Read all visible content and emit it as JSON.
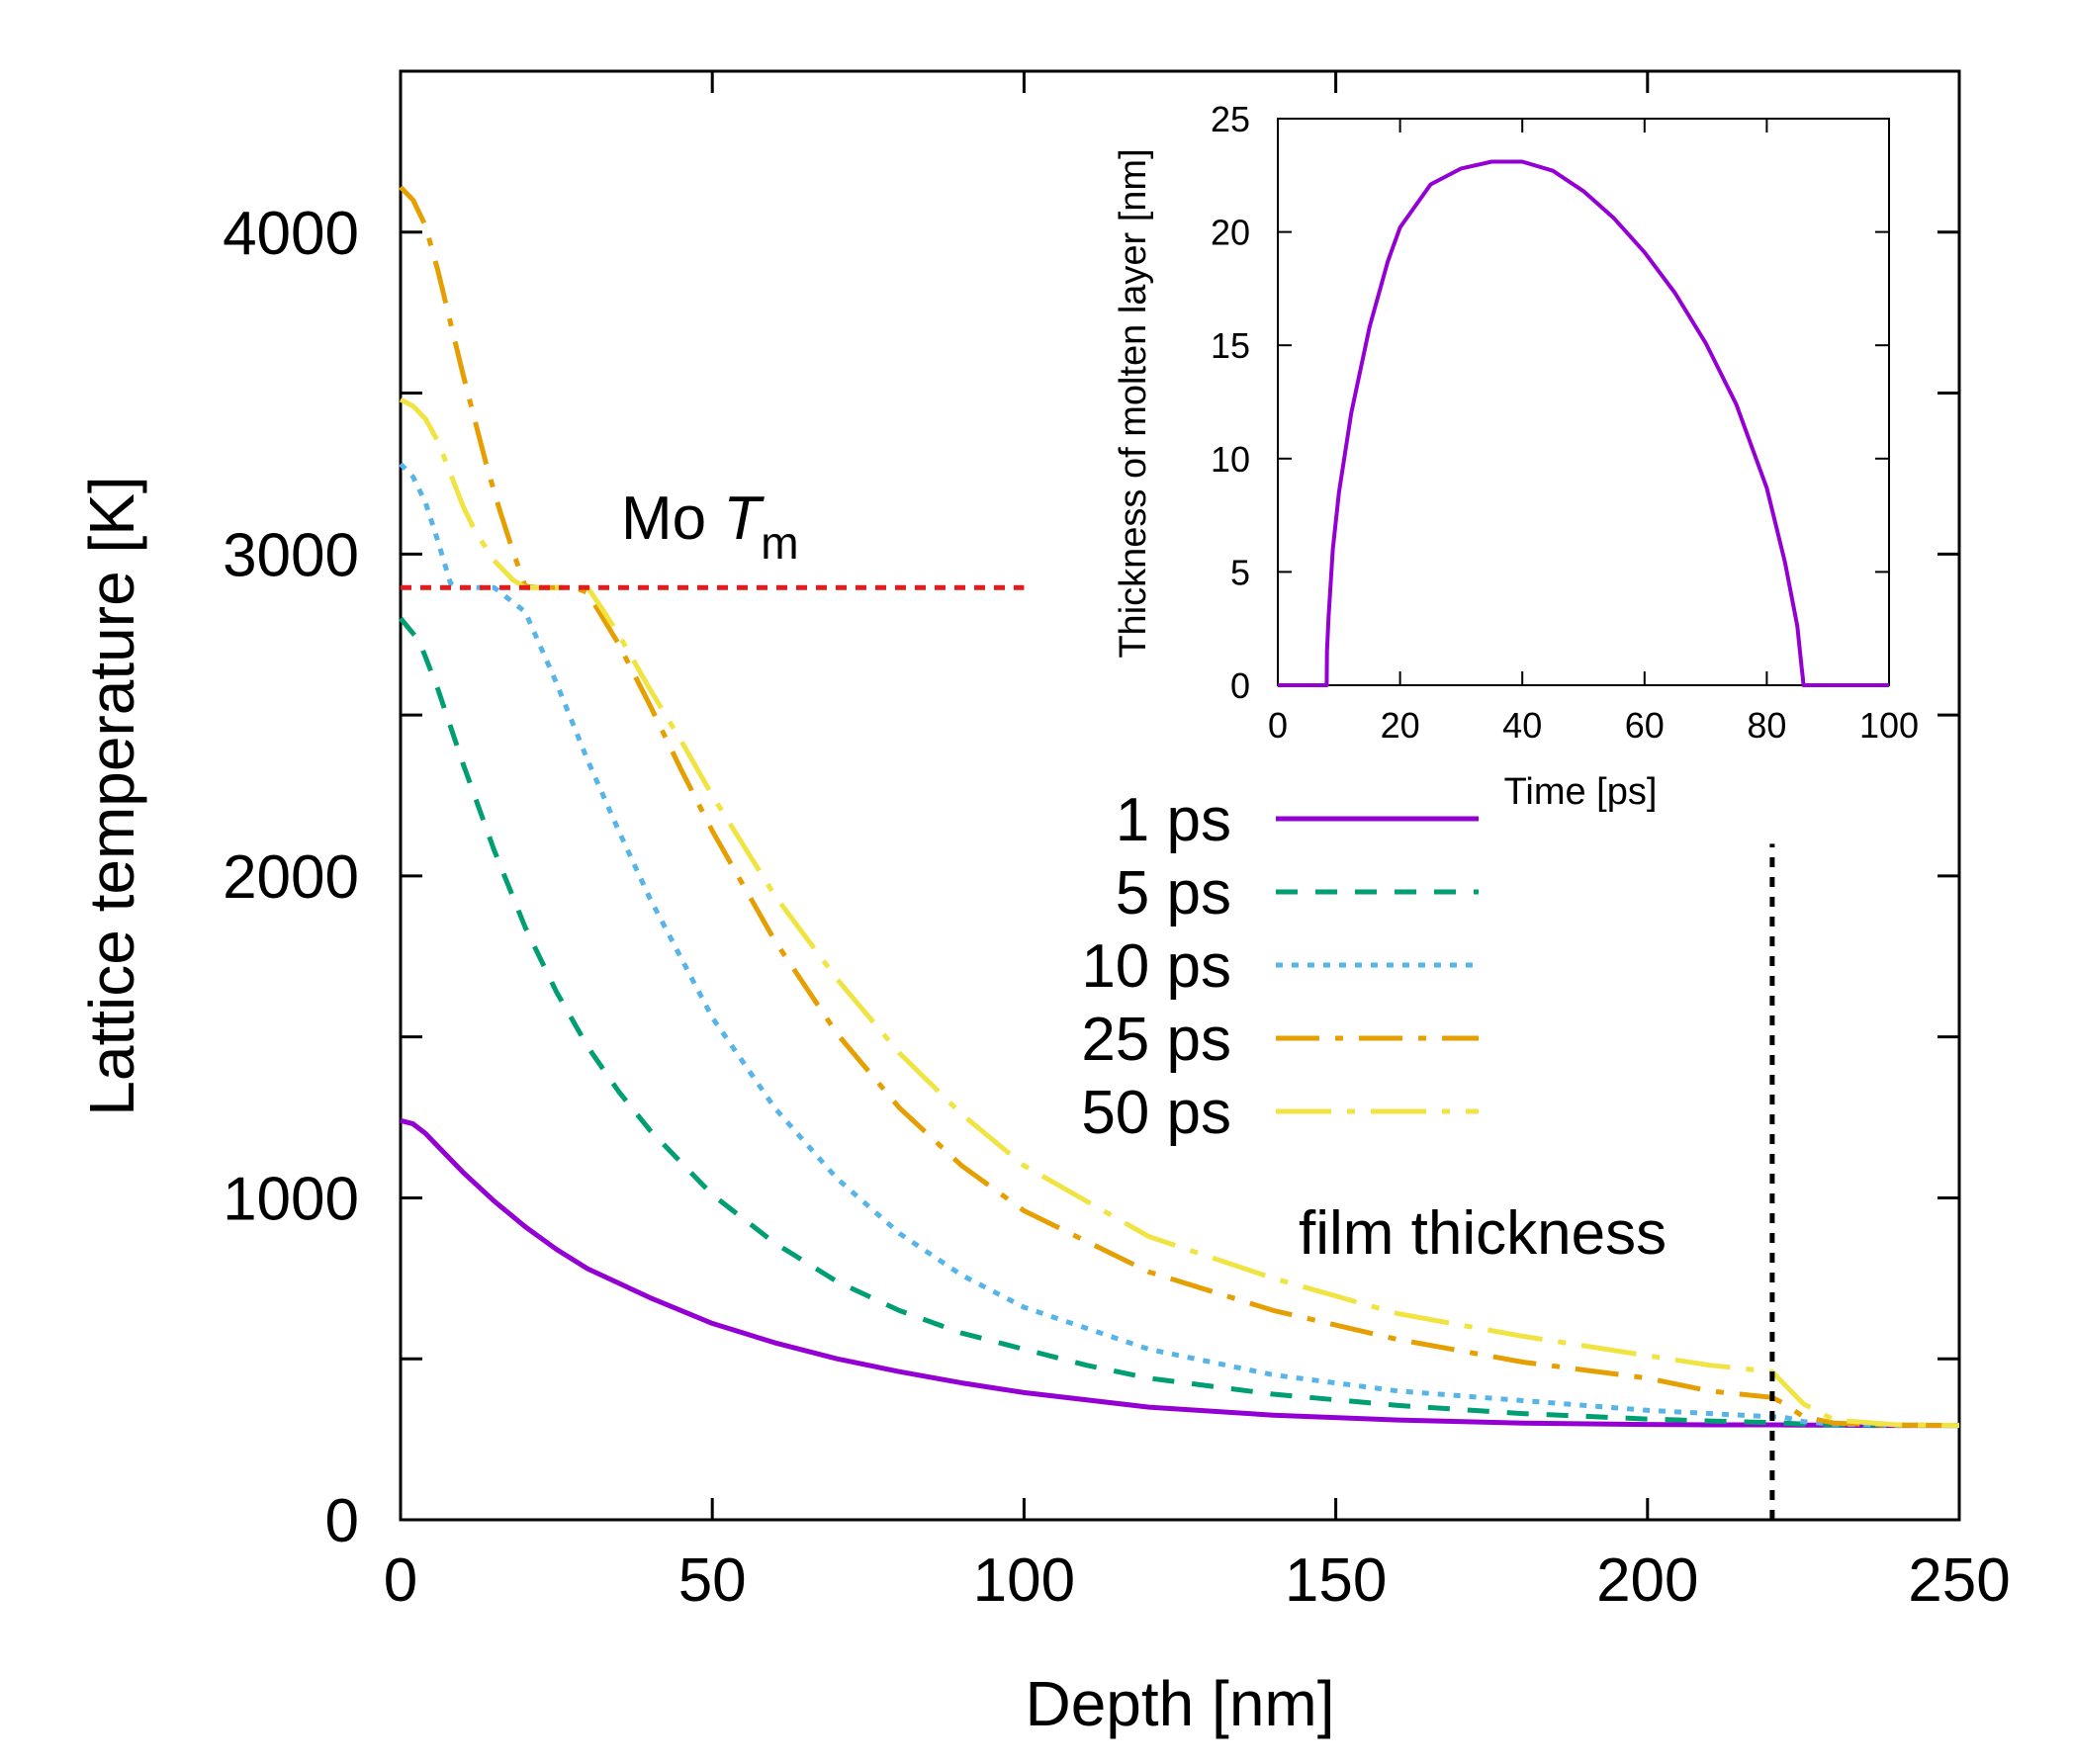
{
  "chart_data": [
    {
      "type": "line",
      "xlabel": "Depth [nm]",
      "ylabel": "Lattice temperature [K]",
      "xlim": [
        0,
        250
      ],
      "ylim": [
        0,
        4500
      ],
      "xticks": [
        0,
        50,
        100,
        150,
        200,
        250
      ],
      "yticks": [
        0,
        1000,
        2000,
        3000,
        4000
      ],
      "annotations": {
        "melting_label_prefix": "Mo ",
        "melting_label_symbol": "T",
        "melting_label_subscript": "m",
        "melting_point": 2896,
        "melting_line_xrange": [
          0,
          100
        ],
        "film_label": "film thickness",
        "film_thickness": 220
      },
      "series": [
        {
          "name": "1 ps",
          "color": "#9400d3",
          "x": [
            0,
            2,
            4,
            6,
            8,
            10,
            15,
            20,
            25,
            30,
            40,
            50,
            60,
            70,
            80,
            90,
            100,
            120,
            140,
            160,
            180,
            200,
            210,
            220,
            225,
            230,
            235,
            240,
            250
          ],
          "y": [
            1240,
            1230,
            1200,
            1160,
            1120,
            1080,
            990,
            910,
            840,
            780,
            690,
            610,
            550,
            500,
            460,
            425,
            395,
            350,
            325,
            310,
            300,
            296,
            295,
            295,
            294,
            294,
            293,
            293,
            293
          ]
        },
        {
          "name": "5 ps",
          "color": "#009e73",
          "x": [
            0,
            3,
            6,
            10,
            15,
            20,
            25,
            30,
            35,
            40,
            50,
            60,
            70,
            80,
            90,
            100,
            110,
            120,
            140,
            160,
            180,
            200,
            210,
            220,
            222,
            225,
            230,
            240,
            250
          ],
          "y": [
            2800,
            2730,
            2580,
            2350,
            2080,
            1840,
            1640,
            1470,
            1330,
            1210,
            1010,
            860,
            740,
            650,
            580,
            530,
            480,
            440,
            390,
            355,
            330,
            313,
            307,
            302,
            300,
            297,
            295,
            294,
            293
          ]
        },
        {
          "name": "10 ps",
          "color": "#56b4e9",
          "x": [
            0,
            2,
            4,
            6,
            8,
            9,
            10,
            12,
            15,
            20,
            25,
            30,
            35,
            40,
            50,
            60,
            70,
            80,
            90,
            100,
            120,
            140,
            160,
            180,
            200,
            210,
            220,
            222,
            225,
            230,
            240,
            250
          ],
          "y": [
            3280,
            3240,
            3160,
            3040,
            2910,
            2896,
            2896,
            2896,
            2896,
            2820,
            2600,
            2360,
            2140,
            1930,
            1560,
            1280,
            1060,
            890,
            760,
            660,
            530,
            450,
            400,
            370,
            340,
            330,
            320,
            318,
            305,
            297,
            294,
            293
          ]
        },
        {
          "name": "25 ps",
          "color": "#e69f00",
          "x": [
            0,
            2,
            4,
            6,
            8,
            10,
            12,
            14,
            16,
            18,
            20,
            22,
            24,
            26,
            28,
            30,
            35,
            40,
            45,
            50,
            60,
            70,
            80,
            90,
            100,
            120,
            140,
            160,
            180,
            200,
            210,
            220,
            222,
            225,
            230,
            240,
            250
          ],
          "y": [
            4140,
            4100,
            4020,
            3880,
            3720,
            3560,
            3410,
            3260,
            3130,
            3010,
            2900,
            2896,
            2896,
            2896,
            2896,
            2880,
            2720,
            2530,
            2330,
            2140,
            1800,
            1510,
            1280,
            1100,
            960,
            770,
            650,
            560,
            490,
            440,
            400,
            380,
            360,
            320,
            300,
            294,
            293
          ]
        },
        {
          "name": "50 ps",
          "color": "#f0e442",
          "x": [
            0,
            2,
            4,
            6,
            8,
            10,
            12,
            15,
            18,
            20,
            22,
            24,
            26,
            28,
            30,
            32,
            35,
            40,
            45,
            50,
            60,
            70,
            80,
            90,
            100,
            120,
            140,
            160,
            180,
            200,
            210,
            220,
            222,
            225,
            230,
            240,
            250
          ],
          "y": [
            3480,
            3460,
            3420,
            3350,
            3250,
            3150,
            3070,
            2980,
            2920,
            2896,
            2896,
            2896,
            2896,
            2896,
            2896,
            2840,
            2750,
            2580,
            2420,
            2250,
            1940,
            1680,
            1450,
            1260,
            1100,
            880,
            750,
            640,
            570,
            510,
            480,
            460,
            420,
            360,
            310,
            295,
            293
          ]
        }
      ]
    },
    {
      "type": "line",
      "xlabel": "Time [ps]",
      "ylabel": "Thickness of molten layer [nm]",
      "xlim": [
        0,
        100
      ],
      "ylim": [
        0,
        25
      ],
      "xticks": [
        0,
        20,
        40,
        60,
        80,
        100
      ],
      "yticks": [
        0,
        5,
        10,
        15,
        20,
        25
      ],
      "series": [
        {
          "name": "molten layer",
          "color": "#9400d3",
          "x": [
            0,
            8,
            8.05,
            8.3,
            9,
            10,
            12,
            15,
            18,
            20,
            25,
            30,
            35,
            40,
            45,
            50,
            55,
            60,
            65,
            70,
            75,
            80,
            83,
            85,
            85.7,
            85.9,
            86,
            100
          ],
          "y": [
            0,
            0,
            1.5,
            3,
            6,
            8.5,
            12,
            15.8,
            18.7,
            20.2,
            22.1,
            22.8,
            23.1,
            23.1,
            22.7,
            21.8,
            20.6,
            19.1,
            17.3,
            15.1,
            12.4,
            8.7,
            5.4,
            2.6,
            0.8,
            0.3,
            0,
            0
          ]
        }
      ]
    }
  ]
}
